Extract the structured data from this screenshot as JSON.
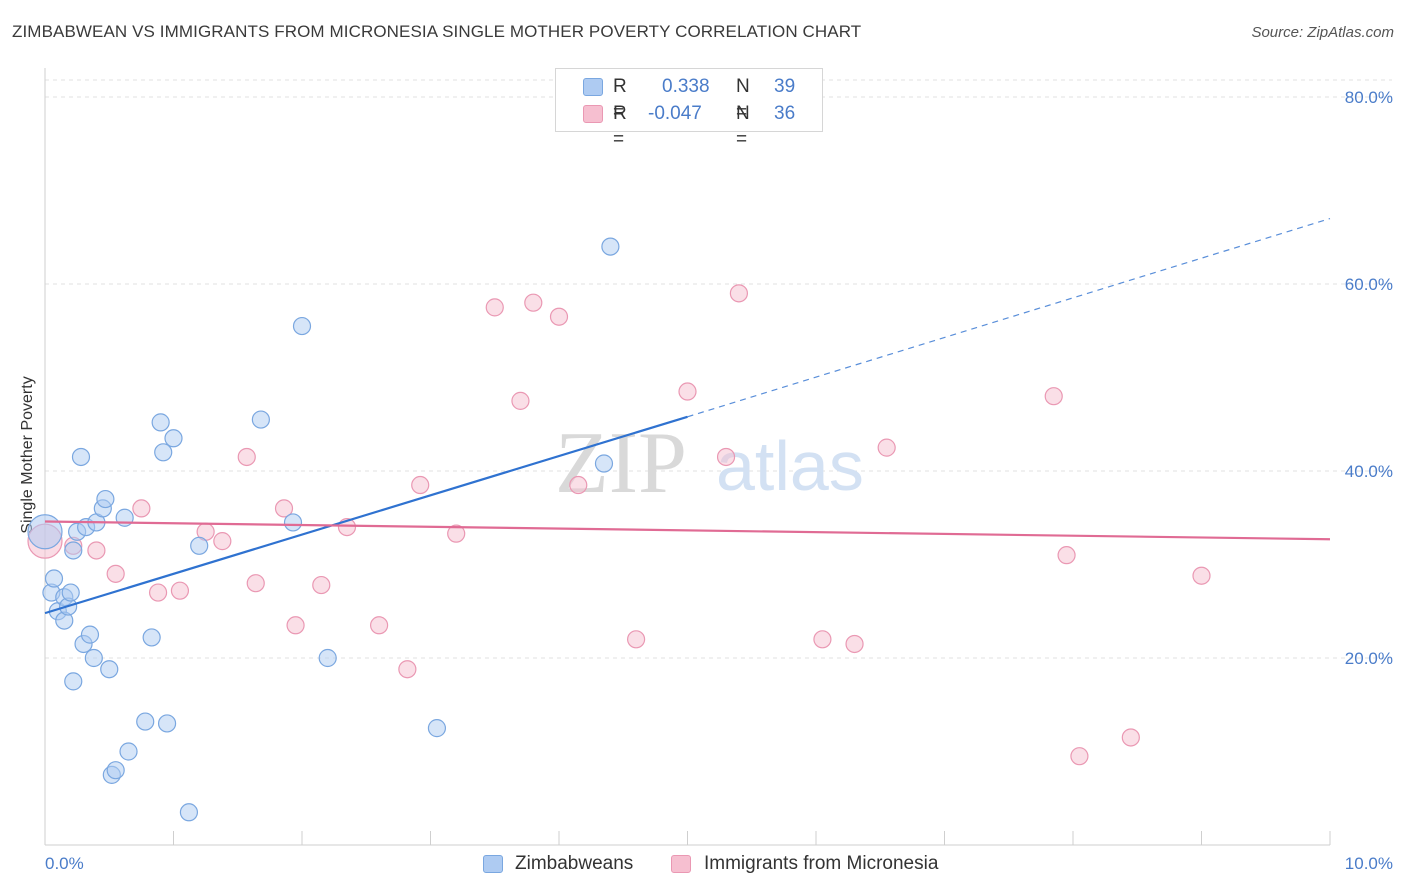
{
  "title": "ZIMBABWEAN VS IMMIGRANTS FROM MICRONESIA SINGLE MOTHER POVERTY CORRELATION CHART",
  "source": "Source: ZipAtlas.com",
  "watermark": {
    "zip": "ZIP",
    "atlas": "atlas"
  },
  "colors": {
    "blue_fill": "#aecbf2",
    "blue_stroke": "#7aa7e0",
    "blue_line": "#2f72d0",
    "pink_fill": "#f6bfd0",
    "pink_stroke": "#ea98b3",
    "pink_line": "#e06b94",
    "tick_text": "#4a7cc9",
    "grid": "#e2e2e2"
  },
  "stats": [
    {
      "swatch": "blue",
      "r_label": "R =",
      "r_value": "0.338",
      "n_label": "N =",
      "n_value": "39"
    },
    {
      "swatch": "pink",
      "r_label": "R =",
      "r_value": "-0.047",
      "n_label": "N =",
      "n_value": "36"
    }
  ],
  "legend": [
    {
      "swatch": "blue",
      "label": "Zimbabweans"
    },
    {
      "swatch": "pink",
      "label": "Immigrants from Micronesia"
    }
  ],
  "chart_data": {
    "type": "scatter",
    "title": "ZIMBABWEAN VS IMMIGRANTS FROM MICRONESIA SINGLE MOTHER POVERTY CORRELATION CHART",
    "xlabel": "",
    "ylabel": "Single Mother Poverty",
    "xlim": [
      0,
      10
    ],
    "ylim": [
      0,
      80
    ],
    "x_tick_labels": [
      {
        "value": 0,
        "label": "0.0%"
      },
      {
        "value": 10,
        "label": "10.0%"
      }
    ],
    "y_tick_labels": [
      {
        "value": 20,
        "label": "20.0%"
      },
      {
        "value": 40,
        "label": "40.0%"
      },
      {
        "value": 60,
        "label": "60.0%"
      },
      {
        "value": 80,
        "label": "80.0%"
      }
    ],
    "x_minor_ticks": [
      0,
      1,
      2,
      3,
      4,
      5,
      6,
      7,
      8,
      9,
      10
    ],
    "grid": true,
    "series": [
      {
        "name": "Zimbabweans",
        "color": "blue",
        "points": [
          [
            0.0,
            33.5
          ],
          [
            0.05,
            27
          ],
          [
            0.07,
            28.5
          ],
          [
            0.1,
            25
          ],
          [
            0.15,
            26.5
          ],
          [
            0.15,
            24
          ],
          [
            0.18,
            25.5
          ],
          [
            0.2,
            27
          ],
          [
            0.22,
            31.5
          ],
          [
            0.25,
            33.5
          ],
          [
            0.28,
            41.5
          ],
          [
            0.3,
            21.5
          ],
          [
            0.32,
            34
          ],
          [
            0.35,
            22.5
          ],
          [
            0.38,
            20
          ],
          [
            0.4,
            34.5
          ],
          [
            0.45,
            36
          ],
          [
            0.47,
            37
          ],
          [
            0.5,
            18.8
          ],
          [
            0.52,
            7.5
          ],
          [
            0.55,
            8
          ],
          [
            0.62,
            35
          ],
          [
            0.22,
            17.5
          ],
          [
            0.65,
            10
          ],
          [
            0.78,
            13.2
          ],
          [
            0.83,
            22.2
          ],
          [
            0.9,
            45.2
          ],
          [
            0.92,
            42
          ],
          [
            0.95,
            13
          ],
          [
            1.0,
            43.5
          ],
          [
            1.12,
            3.5
          ],
          [
            1.2,
            32
          ],
          [
            1.68,
            45.5
          ],
          [
            1.93,
            34.5
          ],
          [
            2.0,
            55.5
          ],
          [
            2.2,
            20
          ],
          [
            3.05,
            12.5
          ],
          [
            4.35,
            40.8
          ],
          [
            4.4,
            64
          ]
        ],
        "trend": {
          "x": [
            0.0,
            5.0
          ],
          "y": [
            24.8,
            45.8
          ],
          "extended": {
            "x": [
              5.0,
              10.0
            ],
            "y": [
              45.8,
              67.0
            ]
          }
        }
      },
      {
        "name": "Immigrants from Micronesia",
        "color": "pink",
        "points": [
          [
            0.0,
            32.5
          ],
          [
            0.22,
            32
          ],
          [
            0.4,
            31.5
          ],
          [
            0.55,
            29
          ],
          [
            0.75,
            36
          ],
          [
            0.88,
            27
          ],
          [
            1.05,
            27.2
          ],
          [
            1.25,
            33.5
          ],
          [
            1.38,
            32.5
          ],
          [
            1.57,
            41.5
          ],
          [
            1.64,
            28
          ],
          [
            1.86,
            36
          ],
          [
            1.95,
            23.5
          ],
          [
            2.15,
            27.8
          ],
          [
            2.35,
            34
          ],
          [
            2.6,
            23.5
          ],
          [
            2.82,
            18.8
          ],
          [
            2.92,
            38.5
          ],
          [
            3.2,
            33.3
          ],
          [
            3.5,
            57.5
          ],
          [
            3.7,
            47.5
          ],
          [
            3.8,
            58
          ],
          [
            4.0,
            56.5
          ],
          [
            4.15,
            38.5
          ],
          [
            4.6,
            22
          ],
          [
            5.0,
            48.5
          ],
          [
            5.3,
            41.5
          ],
          [
            5.4,
            59
          ],
          [
            6.05,
            22
          ],
          [
            6.3,
            21.5
          ],
          [
            6.55,
            42.5
          ],
          [
            7.85,
            48
          ],
          [
            7.95,
            31
          ],
          [
            8.05,
            9.5
          ],
          [
            8.45,
            11.5
          ],
          [
            9.0,
            28.8
          ]
        ],
        "trend": {
          "x": [
            0.0,
            10.0
          ],
          "y": [
            34.6,
            32.7
          ]
        }
      }
    ]
  }
}
